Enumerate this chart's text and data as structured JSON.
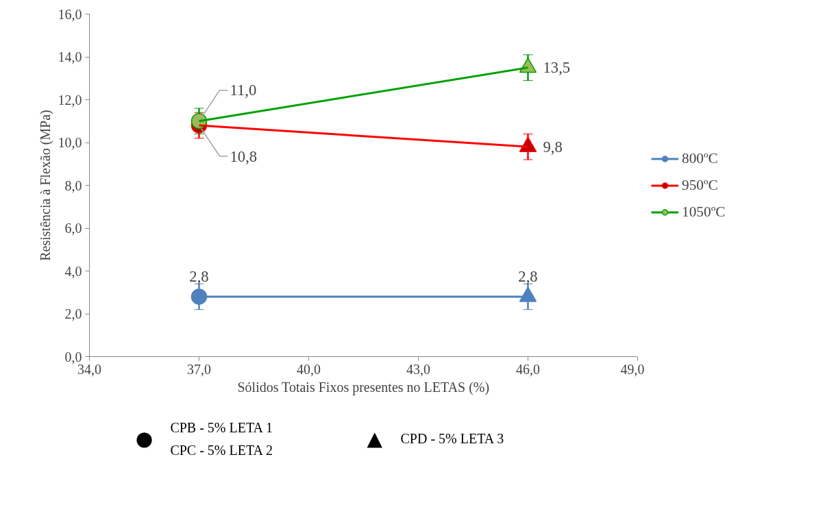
{
  "chart_data": {
    "type": "line",
    "xlabel": "Sólidos Totais Fixos presentes no LETAS (%)",
    "ylabel": "Resistência à Flexão (MPa)",
    "x": [
      37,
      46
    ],
    "series": [
      {
        "name": "800ºC",
        "color": "#4f81bd",
        "colors": [
          "#4f81bd",
          "#4f81bd"
        ],
        "values": [
          2.8,
          2.8
        ],
        "errors": [
          0.6,
          0.6
        ],
        "value_labels": [
          "2,8",
          "2,8"
        ]
      },
      {
        "name": "950ºC",
        "color": "#ff0000",
        "colors": [
          "#c00000",
          "#c00000"
        ],
        "values": [
          10.8,
          9.8
        ],
        "errors": [
          0.6,
          0.6
        ],
        "value_labels": [
          "10,8",
          "9,8"
        ]
      },
      {
        "name": "1050ºC",
        "color": "#00a000",
        "colors": [
          "#9bbb59",
          "#9bbb59"
        ],
        "values": [
          11.0,
          13.5
        ],
        "errors": [
          0.6,
          0.6
        ],
        "value_labels": [
          "11,0",
          "13,5"
        ]
      }
    ],
    "marker": [
      "circle",
      "triangle"
    ],
    "xlim": [
      34,
      49
    ],
    "ylim": [
      0,
      16
    ],
    "xticks": [
      {
        "value": 34,
        "label": "34,0"
      },
      {
        "value": 37,
        "label": "37,0"
      },
      {
        "value": 40,
        "label": "40,0"
      },
      {
        "value": 43,
        "label": "43,0"
      },
      {
        "value": 46,
        "label": "46,0"
      },
      {
        "value": 49,
        "label": "49,0"
      }
    ],
    "yticks": [
      {
        "value": 0,
        "label": "0,0"
      },
      {
        "value": 2,
        "label": "2,0"
      },
      {
        "value": 4,
        "label": "4,0"
      },
      {
        "value": 6,
        "label": "6,0"
      },
      {
        "value": 8,
        "label": "8,0"
      },
      {
        "value": 10,
        "label": "10,0"
      },
      {
        "value": 12,
        "label": "12,0"
      },
      {
        "value": 14,
        "label": "14,0"
      },
      {
        "value": 16,
        "label": "16,0"
      }
    ],
    "grid": false,
    "legend": "right",
    "annotations": [
      "●",
      "CPB - 5% LETA 1",
      "CPC - 5% LETA 2",
      "▲",
      "CPD - 5% LETA 3"
    ]
  }
}
